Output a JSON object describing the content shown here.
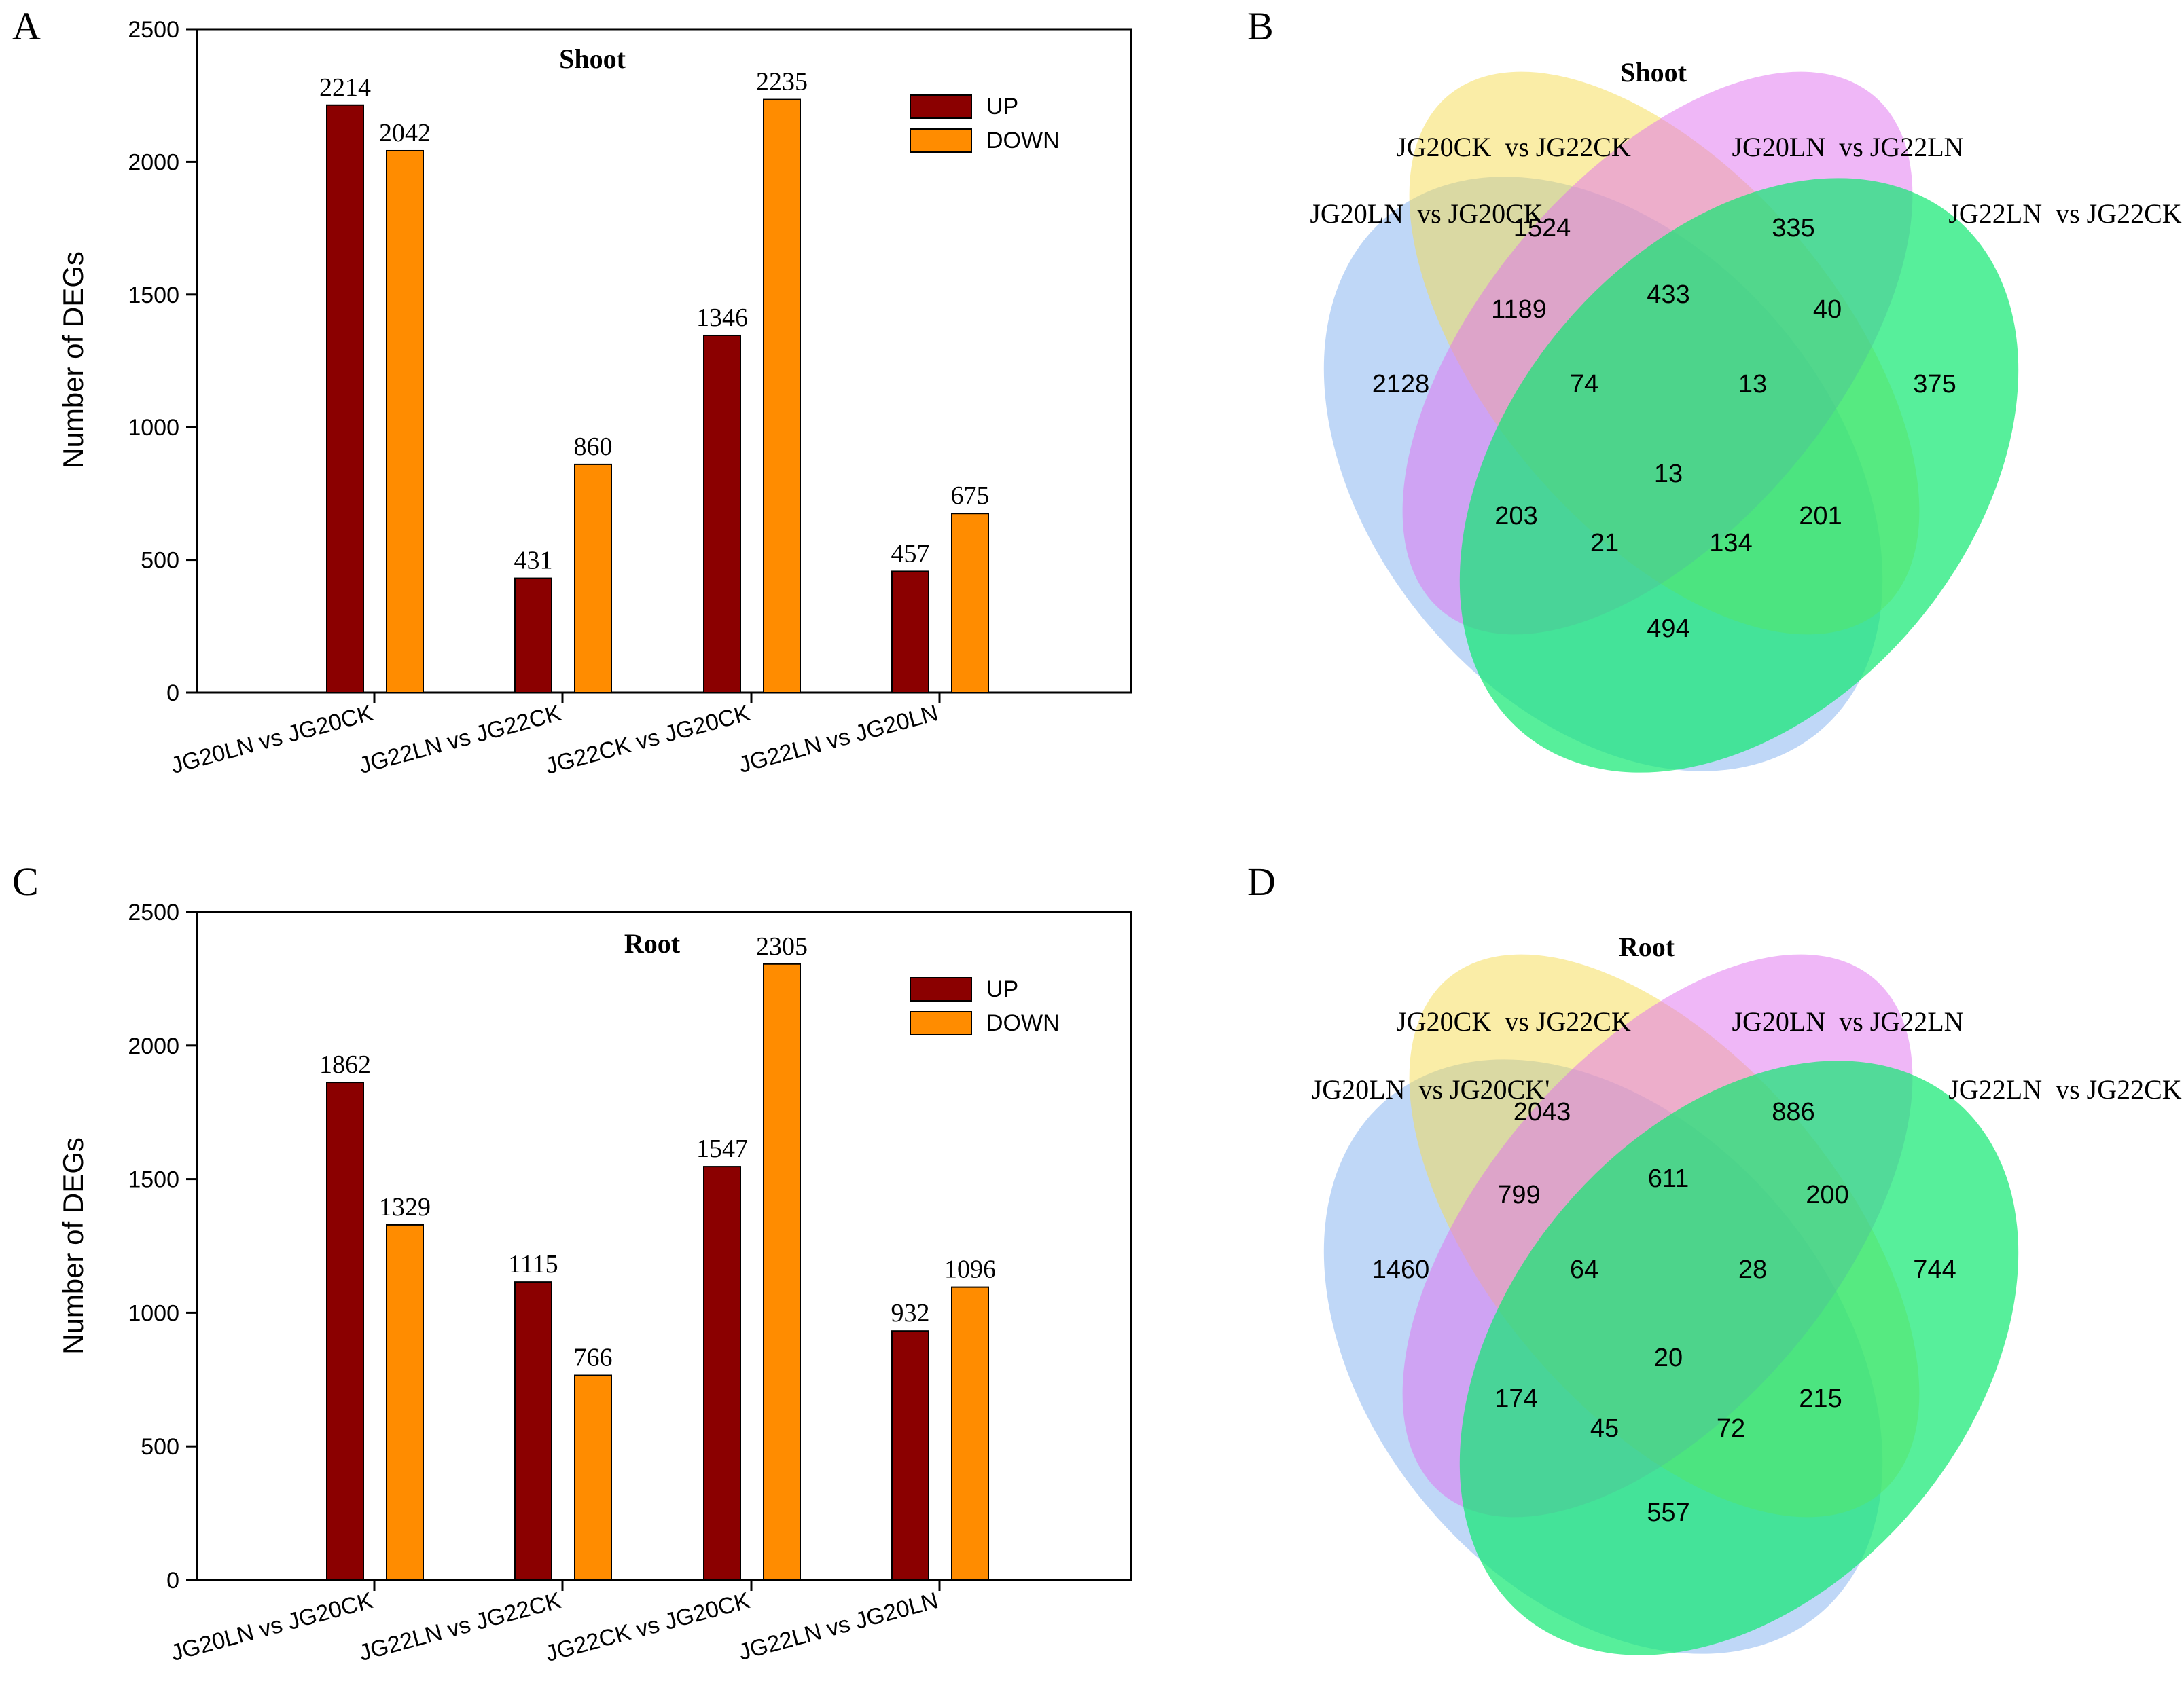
{
  "panels": {
    "a": {
      "letter": "A"
    },
    "b": {
      "letter": "B"
    },
    "c": {
      "letter": "C"
    },
    "d": {
      "letter": "D"
    }
  },
  "colors": {
    "up": "#8b0000",
    "down": "#ff8c00",
    "venn_set1": "#7fb0f0",
    "venn_set2": "#f5dc50",
    "venn_set3": "#e070f0",
    "venn_set4": "#10e870"
  },
  "chart_data": [
    {
      "id": "shoot-bar",
      "type": "bar",
      "title": "Shoot",
      "xlabel": "",
      "ylabel": "Number of DEGs",
      "ylim": [
        0,
        2500
      ],
      "yticks": [
        "0",
        "500",
        "1000",
        "1500",
        "2000",
        "2500"
      ],
      "categories": [
        "JG20LN vs JG20CK",
        "JG22LN vs JG22CK",
        "JG22CK vs JG20CK",
        "JG22LN vs JG20LN"
      ],
      "series": [
        {
          "name": "UP",
          "values": [
            2214,
            431,
            1346,
            457
          ]
        },
        {
          "name": "DOWN",
          "values": [
            2042,
            860,
            2235,
            675
          ]
        }
      ],
      "legend": "top-right"
    },
    {
      "id": "root-bar",
      "type": "bar",
      "title": "Root",
      "xlabel": "",
      "ylabel": "Number of DEGs",
      "ylim": [
        0,
        2500
      ],
      "yticks": [
        "0",
        "500",
        "1000",
        "1500",
        "2000",
        "2500"
      ],
      "categories": [
        "JG20LN vs JG20CK",
        "JG22LN vs JG22CK",
        "JG22CK vs JG20CK",
        "JG22LN vs JG20LN"
      ],
      "series": [
        {
          "name": "UP",
          "values": [
            1862,
            1115,
            1547,
            932
          ]
        },
        {
          "name": "DOWN",
          "values": [
            1329,
            766,
            2305,
            1096
          ]
        }
      ],
      "legend": "top-right"
    },
    {
      "id": "shoot-venn",
      "type": "venn",
      "title": "Shoot",
      "sets": [
        "JG20LN  vs JG20CK",
        "JG20CK  vs JG22CK",
        "JG20LN  vs JG22LN",
        "JG22LN  vs JG22CK"
      ],
      "regions": {
        "1": "2128",
        "2": "1524",
        "3": "335",
        "4": "375",
        "12": "1189",
        "23": "433",
        "34": "40",
        "123": "74",
        "234": "13",
        "1234": "13",
        "13": "203",
        "24": "201",
        "134": "21",
        "124": "134",
        "14": "494"
      }
    },
    {
      "id": "root-venn",
      "type": "venn",
      "title": "Root",
      "sets": [
        "JG20LN  vs JG20CK'",
        "JG20CK  vs JG22CK",
        "JG20LN  vs JG22LN",
        "JG22LN  vs JG22CK"
      ],
      "regions": {
        "1": "1460",
        "2": "2043",
        "3": "886",
        "4": "744",
        "12": "799",
        "23": "611",
        "34": "200",
        "123": "64",
        "234": "28",
        "1234": "20",
        "13": "174",
        "24": "215",
        "134": "45",
        "124": "72",
        "14": "557"
      }
    }
  ]
}
